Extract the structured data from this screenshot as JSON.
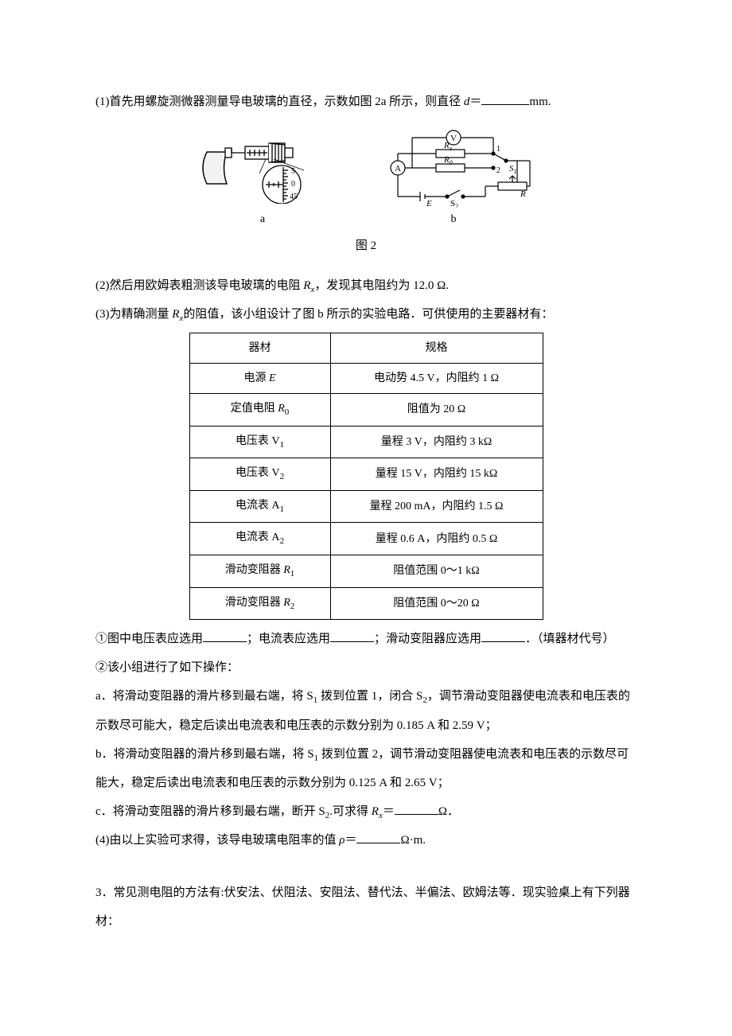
{
  "q1": {
    "text_before": "(1)首先用螺旋测微器测量导电玻璃的直径，示数如图 2a 所示，则直径 ",
    "var": "d",
    "eq": "＝",
    "unit": "mm."
  },
  "fig": {
    "label_a": "a",
    "label_b": "b",
    "caption": "图 2",
    "micrometer": {
      "ticks": [
        "5",
        "0",
        "45"
      ],
      "stroke": "#000"
    },
    "circuit": {
      "V": "V",
      "A": "A",
      "Rx": "R",
      "Rx_sub": "x",
      "R0": "R",
      "R0_sub": "0",
      "E": "E",
      "S1": "S",
      "S1_sub": "1",
      "S2": "S",
      "S2_sub": "2",
      "R": "R",
      "n1": "1",
      "n2": "2",
      "stroke": "#000"
    }
  },
  "q2": "(2)然后用欧姆表粗测该导电玻璃的电阻 Rₓ，发现其电阻约为 12.0 Ω.",
  "q3_intro": "(3)为精确测量 Rₓ的阻值，该小组设计了图 b 所示的实验电路．可供使用的主要器材有：",
  "table": {
    "headers": [
      "器材",
      "规格"
    ],
    "rows": [
      [
        "电源 E",
        "电动势 4.5 V，内阻约 1 Ω"
      ],
      [
        "定值电阻 R₀",
        "阻值为 20 Ω"
      ],
      [
        "电压表 V₁",
        "量程 3 V，内阻约 3 kΩ"
      ],
      [
        "电压表 V₂",
        "量程 15 V，内阻约 15 kΩ"
      ],
      [
        "电流表 A₁",
        "量程 200 mA，内阻约 1.5 Ω"
      ],
      [
        "电流表 A₂",
        "量程 0.6 A，内阻约 0.5 Ω"
      ],
      [
        "滑动变阻器 R₁",
        "阻值范围 0～1 kΩ"
      ],
      [
        "滑动变阻器 R₂",
        "阻值范围 0～20 Ω"
      ]
    ],
    "col_widths": [
      "140px",
      "230px"
    ]
  },
  "q3_1": {
    "a": "①图中电压表应选用",
    "b": "；电流表应选用",
    "c": "；滑动变阻器应选用",
    "d": "．（填器材代号）"
  },
  "q3_2_intro": "②该小组进行了如下操作：",
  "step_a": "a．将滑动变阻器的滑片移到最右端，将 S₁ 拨到位置 1，闭合 S₂，调节滑动变阻器使电流表和电压表的示数尽可能大，稳定后读出电流表和电压表的示数分别为 0.185 A 和 2.59 V；",
  "step_b": "b．将滑动变阻器的滑片移到最右端，将 S₁ 拨到位置 2，调节滑动变阻器使电流表和电压表的示数尽可能大，稳定后读出电流表和电压表的示数分别为 0.125 A 和 2.65 V；",
  "step_c": {
    "a": "c．将滑动变阻器的滑片移到最右端，断开 S₂.可求得 Rₓ＝",
    "unit": "Ω．"
  },
  "q4": {
    "a": "(4)由以上实验可求得，该导电玻璃电阻率的值 ρ＝",
    "unit": "Ω·m."
  },
  "q_next": "3．常见测电阻的方法有:伏安法、伏阻法、安阻法、替代法、半偏法、欧姆法等．现实验桌上有下列器材：",
  "style": {
    "text_color": "#000000",
    "bg_color": "#ffffff",
    "font_size_pt": 11,
    "line_height": 2.4,
    "table_border_color": "#000000"
  }
}
